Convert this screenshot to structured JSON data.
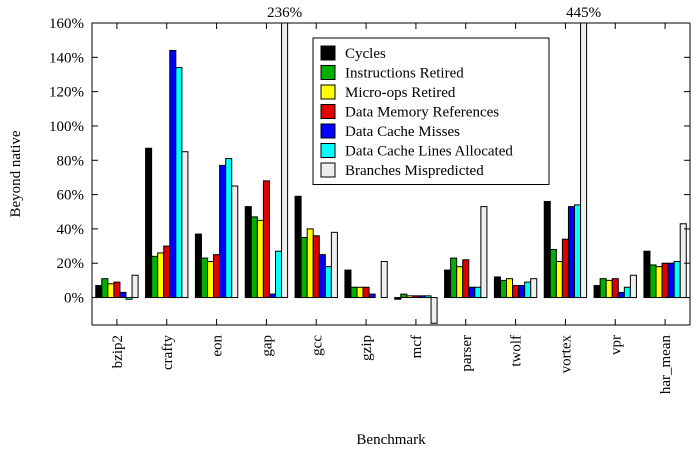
{
  "chart_data": {
    "type": "bar",
    "y_label": "Beyond native",
    "x_label": "Benchmark",
    "categories": [
      "bzip2",
      "crafty",
      "eon",
      "gap",
      "gcc",
      "gzip",
      "mcf",
      "parser",
      "twolf",
      "vortex",
      "vpr",
      "har_mean"
    ],
    "series": [
      {
        "name": "Cycles",
        "color": "#000000",
        "values": [
          7,
          87,
          37,
          53,
          59,
          16,
          -1,
          16,
          12,
          56,
          7,
          27
        ]
      },
      {
        "name": "Instructions Retired",
        "color": "#00b000",
        "values": [
          11,
          24,
          23,
          47,
          35,
          6,
          2,
          23,
          10,
          28,
          11,
          19
        ]
      },
      {
        "name": "Micro-ops Retired",
        "color": "#ffff00",
        "values": [
          8,
          26,
          21,
          45,
          40,
          6,
          1,
          18,
          11,
          21,
          10,
          18
        ]
      },
      {
        "name": "Data Memory References",
        "color": "#e00000",
        "values": [
          9,
          30,
          25,
          68,
          36,
          6,
          1,
          22,
          7,
          34,
          11,
          20
        ]
      },
      {
        "name": "Data Cache Misses",
        "color": "#0000ff",
        "values": [
          3,
          144,
          77,
          2,
          25,
          2,
          1,
          6,
          7,
          53,
          3,
          20
        ]
      },
      {
        "name": "Data Cache Lines Allocated",
        "color": "#00ffff",
        "values": [
          -1,
          134,
          81,
          27,
          18,
          0,
          1,
          6,
          9,
          54,
          6,
          21
        ]
      },
      {
        "name": "Branches Mispredicted",
        "color": "#eeeeee",
        "values": [
          13,
          85,
          65,
          236,
          38,
          21,
          -15,
          53,
          11,
          445,
          13,
          43
        ],
        "value_labels": [
          null,
          null,
          null,
          "236%",
          null,
          null,
          null,
          null,
          null,
          "445%",
          null,
          null
        ]
      }
    ],
    "ylim": [
      -16,
      160
    ],
    "yticks": [
      {
        "value": 0,
        "label": "0%"
      },
      {
        "value": 20,
        "label": "20%"
      },
      {
        "value": 40,
        "label": "40%"
      },
      {
        "value": 60,
        "label": "60%"
      },
      {
        "value": 80,
        "label": "80%"
      },
      {
        "value": 100,
        "label": "100%"
      },
      {
        "value": 120,
        "label": "120%"
      },
      {
        "value": 140,
        "label": "140%"
      },
      {
        "value": 160,
        "label": "160%"
      }
    ],
    "legend": "top-right"
  }
}
